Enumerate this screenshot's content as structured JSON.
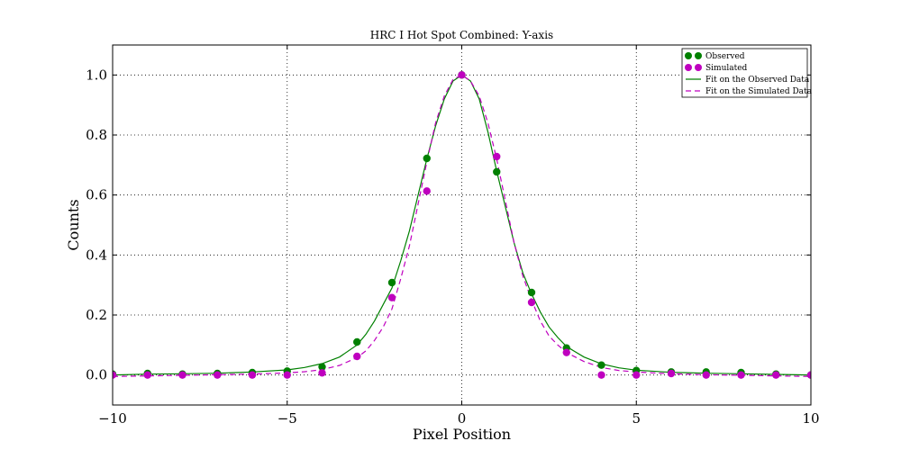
{
  "chart_data": {
    "type": "line",
    "title": "HRC I Hot Spot Combined: Y-axis",
    "xlabel": "Pixel Position",
    "ylabel": "Counts",
    "xlim": [
      -10,
      10
    ],
    "ylim": [
      -0.1,
      1.1
    ],
    "xticks": [
      -10,
      -5,
      0,
      5,
      10
    ],
    "xtick_labels": [
      "−10",
      "−5",
      "0",
      "5",
      "10"
    ],
    "yticks": [
      0.0,
      0.2,
      0.4,
      0.6,
      0.8,
      1.0
    ],
    "ytick_labels": [
      "0.0",
      "0.2",
      "0.4",
      "0.6",
      "0.8",
      "1.0"
    ],
    "grid": true,
    "legend_position": "top-right",
    "series": [
      {
        "name": "Observed",
        "kind": "scatter",
        "color": "#008000",
        "x": [
          -10,
          -9,
          -8,
          -7,
          -6,
          -5,
          -4,
          -3,
          -2,
          -1,
          0,
          1,
          2,
          3,
          4,
          5,
          6,
          7,
          8,
          9,
          10
        ],
        "y": [
          0.003,
          0.005,
          0.003,
          0.005,
          0.008,
          0.013,
          0.027,
          0.11,
          0.308,
          0.722,
          1.0,
          0.677,
          0.275,
          0.09,
          0.033,
          0.015,
          0.01,
          0.01,
          0.008,
          0.003,
          0.0
        ]
      },
      {
        "name": "Simulated",
        "kind": "scatter",
        "color": "#bf00bf",
        "x": [
          -10,
          -9,
          -8,
          -7,
          -6,
          -5,
          -4,
          -3,
          -2,
          -1,
          0,
          1,
          2,
          3,
          4,
          5,
          6,
          7,
          8,
          9,
          10
        ],
        "y": [
          0.0,
          0.0,
          0.0,
          0.0,
          0.0,
          0.0,
          0.007,
          0.062,
          0.258,
          0.613,
          1.0,
          0.728,
          0.242,
          0.075,
          0.0,
          0.0,
          0.005,
          0.0,
          0.0,
          0.0,
          0.0
        ]
      },
      {
        "name": "Fit on the Observed Data",
        "kind": "line",
        "style": "solid",
        "color": "#008000",
        "x": [
          -10,
          -9,
          -8,
          -7,
          -6,
          -5,
          -4.5,
          -4,
          -3.5,
          -3,
          -2.75,
          -2.5,
          -2.25,
          -2,
          -1.75,
          -1.5,
          -1.25,
          -1,
          -0.75,
          -0.5,
          -0.25,
          0,
          0.25,
          0.5,
          0.75,
          1,
          1.25,
          1.5,
          1.75,
          2,
          2.25,
          2.5,
          2.75,
          3,
          3.5,
          4,
          4.5,
          5,
          6,
          7,
          8,
          9,
          10
        ],
        "y": [
          0.0,
          0.003,
          0.004,
          0.006,
          0.01,
          0.017,
          0.025,
          0.038,
          0.06,
          0.1,
          0.135,
          0.18,
          0.235,
          0.29,
          0.38,
          0.48,
          0.6,
          0.72,
          0.83,
          0.92,
          0.98,
          1.0,
          0.98,
          0.92,
          0.81,
          0.68,
          0.56,
          0.44,
          0.34,
          0.27,
          0.21,
          0.16,
          0.125,
          0.095,
          0.06,
          0.037,
          0.024,
          0.016,
          0.009,
          0.006,
          0.004,
          0.002,
          0.0
        ]
      },
      {
        "name": "Fit on the Simulated Data",
        "kind": "line",
        "style": "dashed",
        "color": "#bf00bf",
        "x": [
          -10,
          -9,
          -8,
          -7,
          -6,
          -5,
          -4.5,
          -4,
          -3.5,
          -3,
          -2.75,
          -2.5,
          -2.25,
          -2,
          -1.75,
          -1.5,
          -1.25,
          -1,
          -0.75,
          -0.5,
          -0.25,
          0,
          0.25,
          0.5,
          0.75,
          1,
          1.25,
          1.5,
          1.75,
          2,
          2.25,
          2.5,
          2.75,
          3,
          3.5,
          4,
          4.5,
          5,
          6,
          7,
          8,
          9,
          10
        ],
        "y": [
          -0.005,
          -0.003,
          -0.001,
          0.001,
          0.003,
          0.007,
          0.011,
          0.018,
          0.032,
          0.058,
          0.08,
          0.115,
          0.16,
          0.22,
          0.32,
          0.43,
          0.57,
          0.71,
          0.84,
          0.93,
          0.985,
          1.0,
          0.98,
          0.93,
          0.84,
          0.72,
          0.58,
          0.44,
          0.33,
          0.25,
          0.18,
          0.13,
          0.1,
          0.075,
          0.045,
          0.025,
          0.015,
          0.01,
          0.004,
          0.001,
          -0.001,
          -0.003,
          -0.005
        ]
      }
    ]
  }
}
